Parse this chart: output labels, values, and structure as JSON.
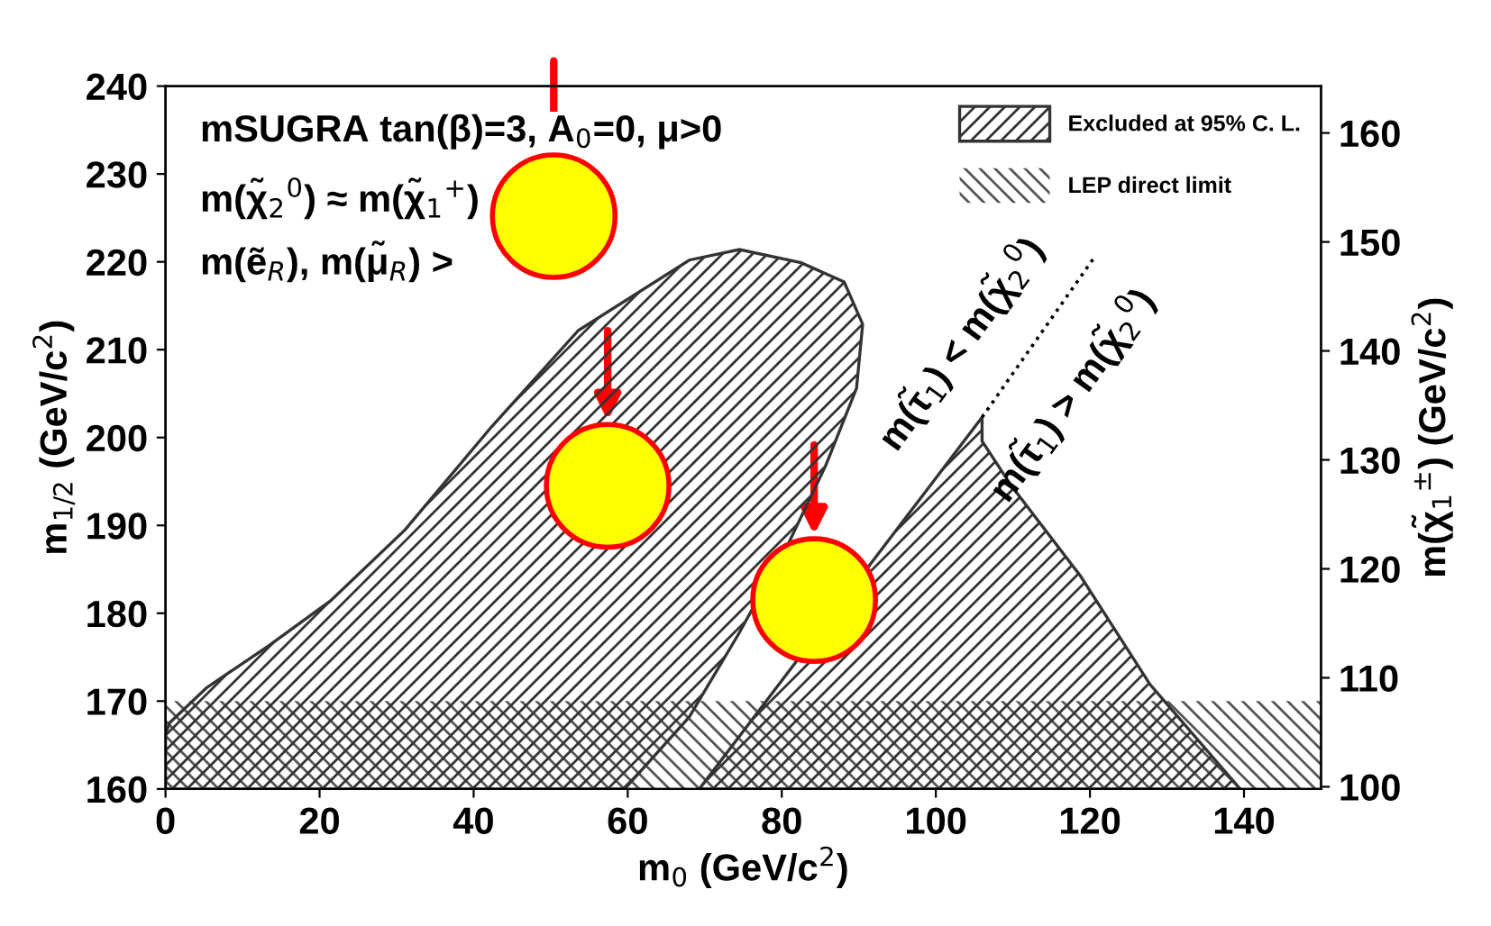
{
  "chart_data": {
    "type": "area",
    "xlabel": "m$_{0}$ (GeV/c$^{2}$)",
    "ylabel": "m$_{1/2}$ (GeV/c$^{2}$)",
    "y2label": "m(χ̃$_{1}$$^{±}$) (GeV/c$^{2}$)",
    "xlim": [
      0,
      150
    ],
    "xticks": [
      0,
      20,
      40,
      60,
      80,
      100,
      120,
      140
    ],
    "ylim": [
      160,
      240
    ],
    "yticks": [
      160,
      170,
      180,
      190,
      200,
      210,
      220,
      230,
      240
    ],
    "y2lim": [
      99.8,
      164.3
    ],
    "y2ticks": [
      100,
      110,
      120,
      130,
      140,
      150,
      160
    ],
    "series": [
      {
        "name": "Excluded at 95% C. L.",
        "color": "#333333",
        "x": [
          0,
          0,
          0.5,
          5.3,
          13.4,
          21.4,
          31.1,
          42.3,
          53.6,
          68.0,
          74.5,
          82.5,
          88.1,
          90.5,
          89.7,
          85.7,
          80.9,
          74.5,
          68.0,
          59.6
        ],
        "values": [
          160,
          166.2,
          167.5,
          171.5,
          176.3,
          181.4,
          189.5,
          201.2,
          212.2,
          220.2,
          221.4,
          219.9,
          217.7,
          212.9,
          205.6,
          196.8,
          188.0,
          177.8,
          168.2,
          160
        ]
      },
      {
        "color": "#333333",
        "x": [
          69.3,
          106,
          106,
          109.8,
          118.8,
          127.8,
          139.5
        ],
        "values": [
          160,
          202.3,
          199.6,
          194.5,
          184.2,
          171.9,
          160
        ]
      },
      {
        "type": "line",
        "color": "#000000",
        "line_style": "dotted",
        "x": [
          106,
          120.4
        ],
        "values": [
          202.3,
          220.3
        ]
      },
      {
        "type": "scatter",
        "color": "#ffff00",
        "x": [
          50.4,
          57.4,
          84.2
        ],
        "values": [
          225.2,
          194.5,
          181.5
        ]
      }
    ],
    "bands": [
      {
        "axis": "y",
        "from": 160,
        "to": 170,
        "label": "LEP direct limit",
        "color": "#555555"
      }
    ],
    "annotations": [
      "mSUGRA tan(β)=3, A$_{0}$=0, μ>0",
      "m(χ̃$_{2}$$^{0}$) ≈ m(χ̃$_{1}$$^{+}$)",
      "m(ẽ$_{R}$), m(μ̃$_{R}$) >",
      {
        "text": "m(τ̃$_{1}$) < m(χ̃$_{2}$$^{0}$)",
        "x": 109.5,
        "y": 206.7
      },
      {
        "text": "m(τ̃$_{1}$) > m(χ̃$_{2}$$^{0}$)",
        "x": 111.3,
        "y": 208.9
      }
    ],
    "legend": "top right",
    "grid": false
  }
}
